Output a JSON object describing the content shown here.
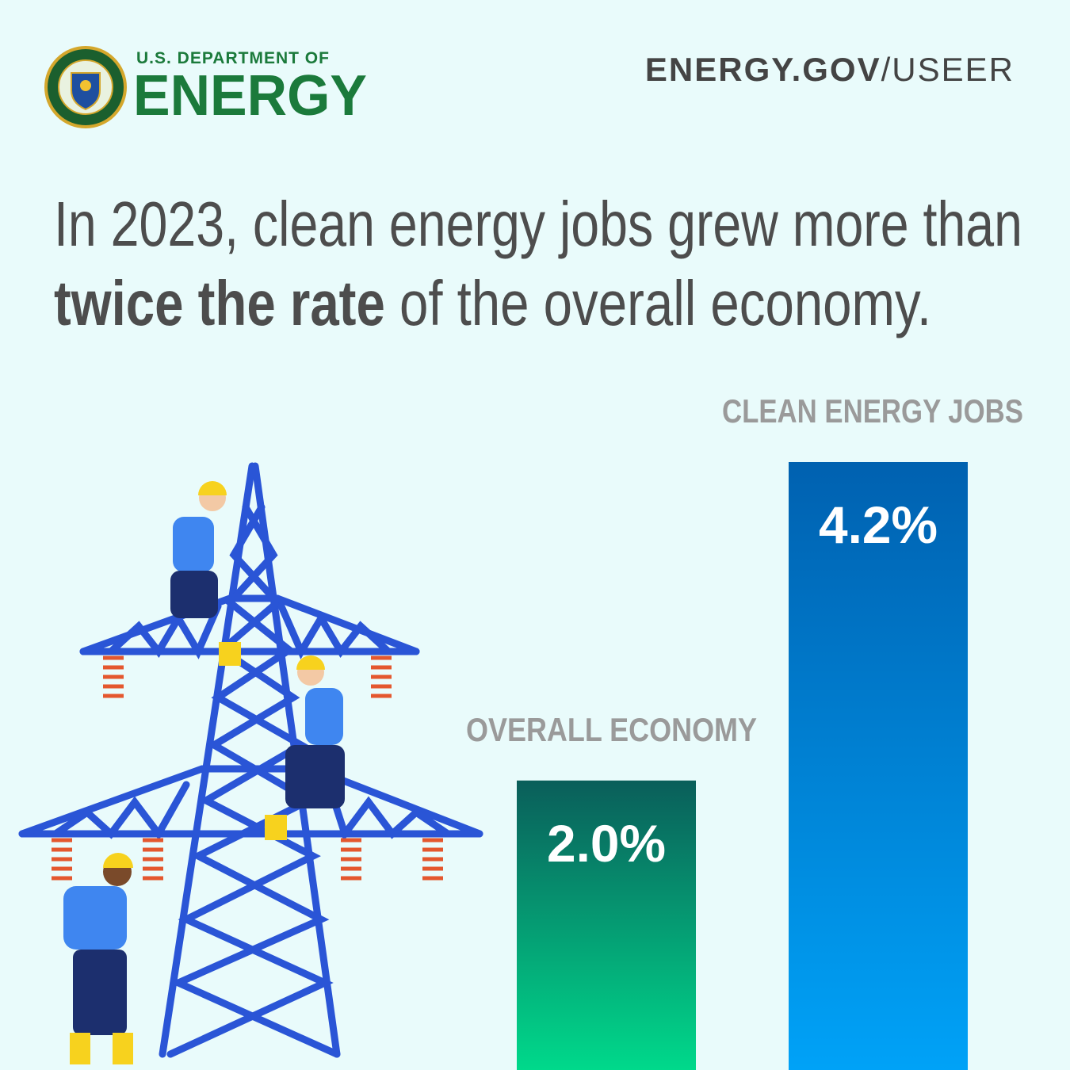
{
  "header": {
    "agency_line": "U.S. DEPARTMENT OF",
    "agency_name": "ENERGY",
    "url_bold": "ENERGY.GOV",
    "url_rest": "/USEER"
  },
  "headline": {
    "line1": "In 2023, clean energy jobs grew more than",
    "emphasis": "twice the rate",
    "line2_rest": " of the overall economy."
  },
  "chart_data": {
    "type": "bar",
    "categories": [
      "OVERALL ECONOMY",
      "CLEAN ENERGY JOBS"
    ],
    "values": [
      2.0,
      4.2
    ],
    "value_labels": [
      "2.0%",
      "4.2%"
    ],
    "colors": [
      {
        "top": "#0a5e5a",
        "bottom": "#00d98b"
      },
      {
        "top": "#0061b0",
        "bottom": "#00a2f7"
      }
    ]
  }
}
